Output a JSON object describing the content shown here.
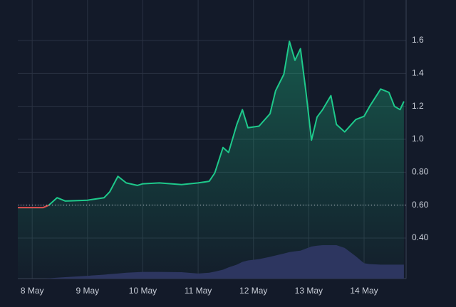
{
  "chart_data": {
    "type": "line",
    "x": [
      -0.26,
      0.2,
      0.3,
      0.45,
      0.6,
      1.0,
      1.3,
      1.4,
      1.55,
      1.7,
      1.9,
      2.0,
      2.3,
      2.7,
      3.0,
      3.2,
      3.3,
      3.45,
      3.55,
      3.7,
      3.8,
      3.9,
      4.1,
      4.3,
      4.4,
      4.55,
      4.65,
      4.75,
      4.85,
      4.95,
      5.05,
      5.15,
      5.25,
      5.4,
      5.5,
      5.65,
      5.85,
      6.0,
      6.1,
      6.3,
      6.45,
      6.55,
      6.65,
      6.72
    ],
    "series": [
      {
        "color": "#1ec98b",
        "below_color": "#e0474c",
        "values": [
          0.585,
          0.585,
          0.6,
          0.645,
          0.625,
          0.63,
          0.645,
          0.68,
          0.775,
          0.735,
          0.72,
          0.73,
          0.735,
          0.725,
          0.735,
          0.745,
          0.795,
          0.95,
          0.92,
          1.09,
          1.18,
          1.07,
          1.08,
          1.155,
          1.295,
          1.395,
          1.595,
          1.48,
          1.55,
          1.285,
          0.995,
          1.135,
          1.18,
          1.265,
          1.09,
          1.045,
          1.12,
          1.14,
          1.2,
          1.305,
          1.285,
          1.2,
          1.18,
          1.23
        ]
      },
      {
        "color": "#2d3660",
        "axis": "y2",
        "values": [
          0,
          0,
          0.1,
          0.3,
          0.5,
          1,
          1.4,
          1.6,
          1.8,
          2.1,
          2.3,
          2.4,
          2.4,
          2.3,
          1.8,
          2.1,
          2.5,
          3.2,
          4,
          5,
          6,
          6.5,
          7,
          7.8,
          8.3,
          9,
          9.5,
          9.8,
          10,
          10.8,
          11.5,
          11.8,
          12,
          12,
          12,
          11,
          8,
          5.5,
          5.2,
          5,
          5,
          5,
          5,
          5
        ]
      }
    ],
    "xlim": [
      -0.26,
      6.76
    ],
    "xticks": [
      {
        "value": 0,
        "label": "8 May"
      },
      {
        "value": 1,
        "label": "9 May"
      },
      {
        "value": 2,
        "label": "10 May"
      },
      {
        "value": 3,
        "label": "11 May"
      },
      {
        "value": 4,
        "label": "12 May"
      },
      {
        "value": 5,
        "label": "13 May"
      },
      {
        "value": 6,
        "label": "14 May"
      }
    ],
    "ylim": [
      0.154,
      1.846
    ],
    "yticks": [
      {
        "value": 0.4,
        "label": "0.40"
      },
      {
        "value": 0.6,
        "label": "0.60"
      },
      {
        "value": 0.8,
        "label": "0.80"
      },
      {
        "value": 1.0,
        "label": "1.0"
      },
      1.2,
      1.4,
      1.6
    ],
    "y2lim": [
      0,
      100
    ],
    "baseline": 0.6,
    "grid": true
  }
}
